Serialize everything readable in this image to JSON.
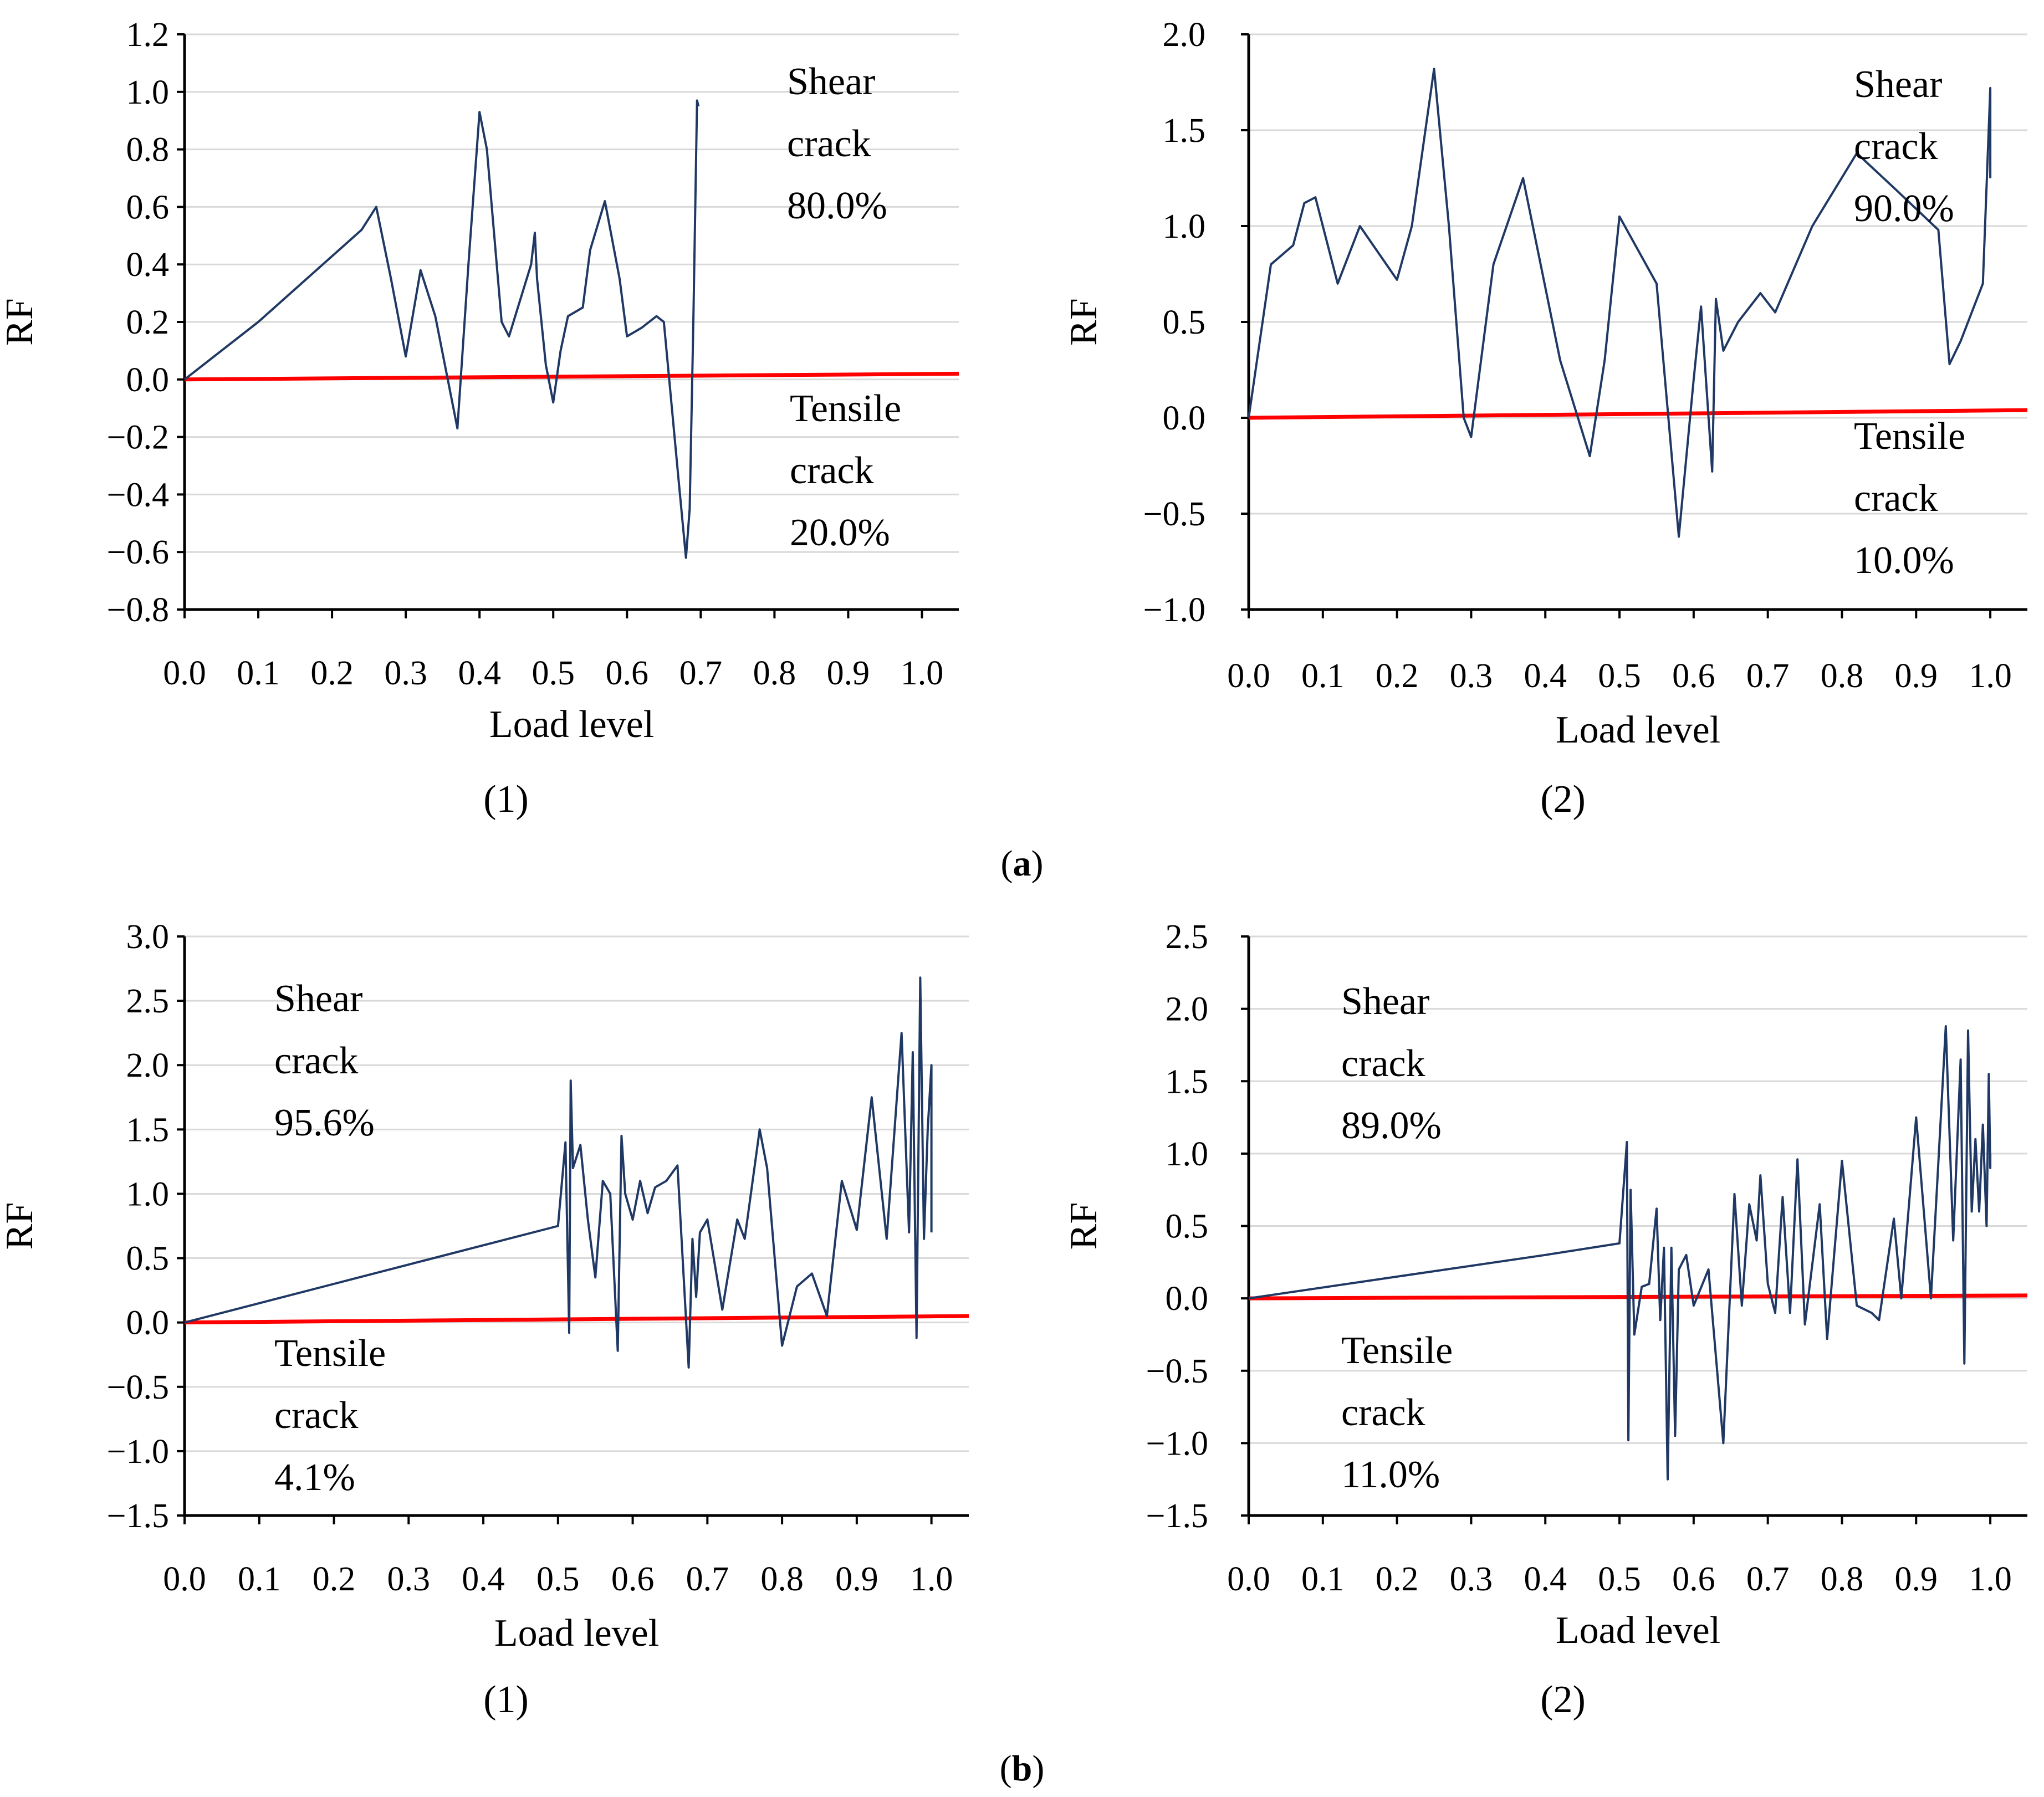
{
  "figure": {
    "group_labels": [
      "(a)",
      "(b)"
    ],
    "group_letters": [
      "a",
      "b"
    ],
    "panel_labels": [
      "(1)",
      "(2)",
      "(1)",
      "(2)"
    ]
  },
  "colors": {
    "series": "#1f3864",
    "zero_line": "#ff0000",
    "axis": "#000000"
  },
  "chart_data": [
    {
      "panel": "(a)(1)",
      "type": "line",
      "xlabel": "Load level",
      "ylabel": "RF",
      "xlim": [
        0.0,
        1.05
      ],
      "ylim": [
        -0.8,
        1.2
      ],
      "xticks": [
        0.0,
        0.1,
        0.2,
        0.3,
        0.4,
        0.5,
        0.6,
        0.7,
        0.8,
        0.9,
        1.0
      ],
      "yticks": [
        -0.8,
        -0.6,
        -0.4,
        -0.2,
        0.0,
        0.2,
        0.4,
        0.6,
        0.8,
        1.0,
        1.2
      ],
      "xtick_labels": [
        "0.0",
        "0.1",
        "0.2",
        "0.3",
        "0.4",
        "0.5",
        "0.6",
        "0.7",
        "0.8",
        "0.9",
        "1.0"
      ],
      "ytick_labels": [
        "−0.8",
        "−0.6",
        "−0.4",
        "−0.2",
        "0.0",
        "0.2",
        "0.4",
        "0.6",
        "0.8",
        "1.0",
        "1.2"
      ],
      "zero_line": {
        "y_start": 0.0,
        "y_end": 0.02
      },
      "series": [
        {
          "name": "RF",
          "x": [
            0.0,
            0.1,
            0.24,
            0.26,
            0.28,
            0.3,
            0.32,
            0.34,
            0.37,
            0.385,
            0.4,
            0.41,
            0.43,
            0.44,
            0.47,
            0.475,
            0.478,
            0.49,
            0.5,
            0.51,
            0.52,
            0.54,
            0.55,
            0.57,
            0.59,
            0.6,
            0.62,
            0.64,
            0.65,
            0.67,
            0.68,
            0.685,
            0.69,
            0.695,
            0.697
          ],
          "y": [
            0.0,
            0.2,
            0.52,
            0.6,
            0.35,
            0.08,
            0.38,
            0.22,
            -0.17,
            0.4,
            0.93,
            0.8,
            0.2,
            0.15,
            0.4,
            0.51,
            0.35,
            0.05,
            -0.08,
            0.1,
            0.22,
            0.25,
            0.45,
            0.62,
            0.35,
            0.15,
            0.18,
            0.22,
            0.2,
            -0.35,
            -0.62,
            -0.45,
            0.2,
            0.97,
            0.95
          ]
        }
      ],
      "annotations": {
        "upper": [
          "Shear",
          "crack",
          "80.0%"
        ],
        "lower": [
          "Tensile",
          "crack",
          "20.0%"
        ]
      }
    },
    {
      "panel": "(a)(2)",
      "type": "line",
      "xlabel": "Load level",
      "ylabel": "RF",
      "xlim": [
        0.0,
        1.05
      ],
      "ylim": [
        -1.0,
        2.0
      ],
      "xticks": [
        0.0,
        0.1,
        0.2,
        0.3,
        0.4,
        0.5,
        0.6,
        0.7,
        0.8,
        0.9,
        1.0
      ],
      "yticks": [
        -1.0,
        -0.5,
        0.0,
        0.5,
        1.0,
        1.5,
        2.0
      ],
      "xtick_labels": [
        "0.0",
        "0.1",
        "0.2",
        "0.3",
        "0.4",
        "0.5",
        "0.6",
        "0.7",
        "0.8",
        "0.9",
        "1.0"
      ],
      "ytick_labels": [
        "−1.0",
        "−0.5",
        "0.0",
        "0.5",
        "1.0",
        "1.5",
        "2.0"
      ],
      "zero_line": {
        "y_start": 0.0,
        "y_end": 0.04
      },
      "series": [
        {
          "name": "RF",
          "x": [
            0.0,
            0.03,
            0.06,
            0.075,
            0.09,
            0.12,
            0.15,
            0.2,
            0.22,
            0.25,
            0.27,
            0.29,
            0.3,
            0.33,
            0.37,
            0.42,
            0.46,
            0.48,
            0.5,
            0.55,
            0.58,
            0.6,
            0.61,
            0.625,
            0.63,
            0.64,
            0.66,
            0.69,
            0.71,
            0.76,
            0.82,
            0.87,
            0.93,
            0.945,
            0.96,
            0.99,
            1.0,
            1.0
          ],
          "y": [
            0.0,
            0.8,
            0.9,
            1.12,
            1.15,
            0.7,
            1.0,
            0.72,
            1.0,
            1.82,
            1.0,
            0.0,
            -0.1,
            0.8,
            1.25,
            0.3,
            -0.2,
            0.3,
            1.05,
            0.7,
            -0.62,
            0.2,
            0.58,
            -0.28,
            0.62,
            0.35,
            0.5,
            0.65,
            0.55,
            1.0,
            1.38,
            1.2,
            0.98,
            0.28,
            0.4,
            0.7,
            1.72,
            1.25
          ]
        }
      ],
      "annotations": {
        "upper": [
          "Shear",
          "crack",
          "90.0%"
        ],
        "lower": [
          "Tensile",
          "crack",
          "10.0%"
        ]
      }
    },
    {
      "panel": "(b)(1)",
      "type": "line",
      "xlabel": "Load level",
      "ylabel": "RF",
      "xlim": [
        0.0,
        1.05
      ],
      "ylim": [
        -1.5,
        3.0
      ],
      "xticks": [
        0.0,
        0.1,
        0.2,
        0.3,
        0.4,
        0.5,
        0.6,
        0.7,
        0.8,
        0.9,
        1.0
      ],
      "yticks": [
        -1.5,
        -1.0,
        -0.5,
        0.0,
        0.5,
        1.0,
        1.5,
        2.0,
        2.5,
        3.0
      ],
      "xtick_labels": [
        "0.0",
        "0.1",
        "0.2",
        "0.3",
        "0.4",
        "0.5",
        "0.6",
        "0.7",
        "0.8",
        "0.9",
        "1.0"
      ],
      "ytick_labels": [
        "−1.5",
        "−1.0",
        "−0.5",
        "0.0",
        "0.5",
        "1.0",
        "1.5",
        "2.0",
        "2.5",
        "3.0"
      ],
      "zero_line": {
        "y_start": 0.0,
        "y_end": 0.05
      },
      "series": [
        {
          "name": "RF",
          "x": [
            0.0,
            0.2,
            0.4,
            0.5,
            0.51,
            0.515,
            0.517,
            0.52,
            0.53,
            0.54,
            0.55,
            0.56,
            0.57,
            0.58,
            0.585,
            0.59,
            0.6,
            0.61,
            0.62,
            0.63,
            0.645,
            0.66,
            0.675,
            0.68,
            0.685,
            0.69,
            0.7,
            0.72,
            0.74,
            0.75,
            0.77,
            0.78,
            0.8,
            0.82,
            0.84,
            0.86,
            0.88,
            0.9,
            0.92,
            0.94,
            0.96,
            0.97,
            0.975,
            0.98,
            0.985,
            0.99,
            0.995,
            1.0,
            1.0
          ],
          "y": [
            0.0,
            0.3,
            0.6,
            0.75,
            1.4,
            -0.08,
            1.88,
            1.2,
            1.38,
            0.8,
            0.35,
            1.1,
            1.0,
            -0.22,
            1.45,
            1.0,
            0.8,
            1.1,
            0.85,
            1.05,
            1.1,
            1.22,
            -0.35,
            0.65,
            0.2,
            0.7,
            0.8,
            0.1,
            0.8,
            0.65,
            1.5,
            1.2,
            -0.18,
            0.28,
            0.38,
            0.05,
            1.1,
            0.72,
            1.75,
            0.65,
            2.25,
            0.7,
            2.1,
            -0.12,
            2.68,
            0.65,
            1.5,
            2.0,
            0.7
          ]
        }
      ],
      "annotations": {
        "upper": [
          "Shear",
          "crack",
          "95.6%"
        ],
        "lower": [
          "Tensile",
          "crack",
          "4.1%"
        ]
      }
    },
    {
      "panel": "(b)(2)",
      "type": "line",
      "xlabel": "Load level",
      "ylabel": "RF",
      "xlim": [
        0.0,
        1.05
      ],
      "ylim": [
        -1.5,
        2.5
      ],
      "xticks": [
        0.0,
        0.1,
        0.2,
        0.3,
        0.4,
        0.5,
        0.6,
        0.7,
        0.8,
        0.9,
        1.0
      ],
      "yticks": [
        -1.5,
        -1.0,
        -0.5,
        0.0,
        0.5,
        1.0,
        1.5,
        2.0,
        2.5
      ],
      "xtick_labels": [
        "0.0",
        "0.1",
        "0.2",
        "0.3",
        "0.4",
        "0.5",
        "0.6",
        "0.7",
        "0.8",
        "0.9",
        "1.0"
      ],
      "ytick_labels": [
        "−1.5",
        "−1.0",
        "−0.5",
        "0.0",
        "0.5",
        "1.0",
        "1.5",
        "2.0",
        "2.5"
      ],
      "zero_line": {
        "y_start": 0.0,
        "y_end": 0.02
      },
      "series": [
        {
          "name": "RF",
          "x": [
            0.0,
            0.2,
            0.4,
            0.5,
            0.51,
            0.512,
            0.515,
            0.52,
            0.53,
            0.54,
            0.55,
            0.555,
            0.56,
            0.565,
            0.57,
            0.575,
            0.58,
            0.59,
            0.6,
            0.62,
            0.64,
            0.655,
            0.665,
            0.675,
            0.685,
            0.69,
            0.7,
            0.71,
            0.72,
            0.73,
            0.74,
            0.75,
            0.77,
            0.78,
            0.8,
            0.82,
            0.84,
            0.85,
            0.87,
            0.88,
            0.9,
            0.92,
            0.94,
            0.95,
            0.96,
            0.965,
            0.97,
            0.975,
            0.98,
            0.985,
            0.99,
            0.995,
            0.998,
            1.0,
            1.0
          ],
          "y": [
            0.0,
            0.15,
            0.3,
            0.38,
            1.08,
            -0.98,
            0.75,
            -0.25,
            0.08,
            0.1,
            0.62,
            -0.15,
            0.35,
            -1.25,
            0.35,
            -0.95,
            0.2,
            0.3,
            -0.05,
            0.2,
            -1.0,
            0.72,
            -0.05,
            0.65,
            0.4,
            0.85,
            0.1,
            -0.1,
            0.7,
            -0.1,
            0.96,
            -0.18,
            0.65,
            -0.28,
            0.95,
            -0.05,
            -0.1,
            -0.15,
            0.55,
            0.0,
            1.25,
            0.0,
            1.88,
            0.4,
            1.65,
            -0.45,
            1.85,
            0.6,
            1.1,
            0.6,
            1.2,
            0.5,
            1.55,
            0.9,
            1.0
          ]
        }
      ],
      "annotations": {
        "upper": [
          "Shear",
          "crack",
          "89.0%"
        ],
        "lower": [
          "Tensile",
          "crack",
          "11.0%"
        ]
      }
    }
  ]
}
